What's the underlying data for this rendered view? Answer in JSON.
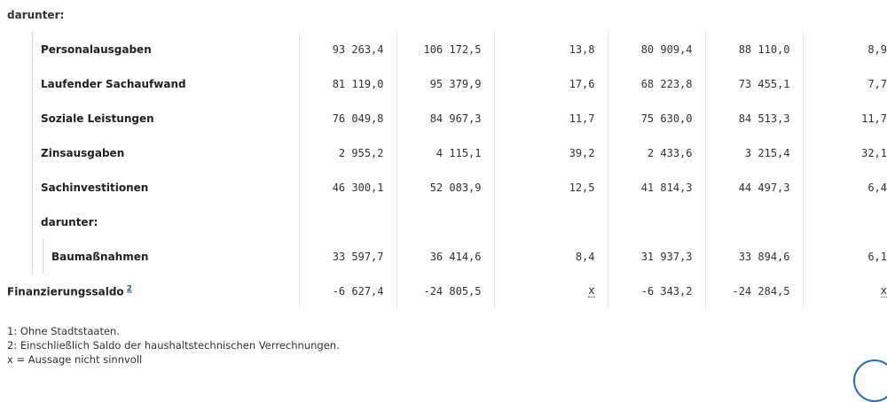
{
  "section_label": "darunter:",
  "rows": [
    {
      "label": "Personalausgaben",
      "level": 1,
      "values": [
        "93 263,4",
        "106 172,5",
        "13,8",
        "80 909,4",
        "88 110,0",
        "8,9"
      ]
    },
    {
      "label": "Laufender Sachaufwand",
      "level": 1,
      "values": [
        "81 119,0",
        "95 379,9",
        "17,6",
        "68 223,8",
        "73 455,1",
        "7,7"
      ]
    },
    {
      "label": "Soziale Leistungen",
      "level": 1,
      "values": [
        "76 049,8",
        "84 967,3",
        "11,7",
        "75 630,0",
        "84 513,3",
        "11,7"
      ]
    },
    {
      "label": "Zinsausgaben",
      "level": 1,
      "values": [
        "2 955,2",
        "4 115,1",
        "39,2",
        "2 433,6",
        "3 215,4",
        "32,1"
      ]
    },
    {
      "label": "Sachinvestitionen",
      "level": 1,
      "values": [
        "46 300,1",
        "52 083,9",
        "12,5",
        "41 814,3",
        "44 497,3",
        "6,4"
      ]
    },
    {
      "label": "darunter:",
      "level": 1,
      "values": [
        "",
        "",
        "",
        "",
        "",
        ""
      ]
    },
    {
      "label": "Baumaßnahmen",
      "level": 2,
      "values": [
        "33 597,7",
        "36 414,6",
        "8,4",
        "31 937,3",
        "33 894,6",
        "6,1"
      ]
    },
    {
      "label": "Finanzierungssaldo",
      "footnote": "2",
      "level": 0,
      "values": [
        "-6 627,4",
        "-24 805,5",
        "x",
        "-6 343,2",
        "-24 284,5",
        "x"
      ]
    }
  ],
  "footnotes": [
    "1: Ohne Stadtstaaten.",
    "2: Einschließlich Saldo der haushaltstechnischen Verrechnungen.",
    "x = Aussage nicht sinnvoll"
  ]
}
